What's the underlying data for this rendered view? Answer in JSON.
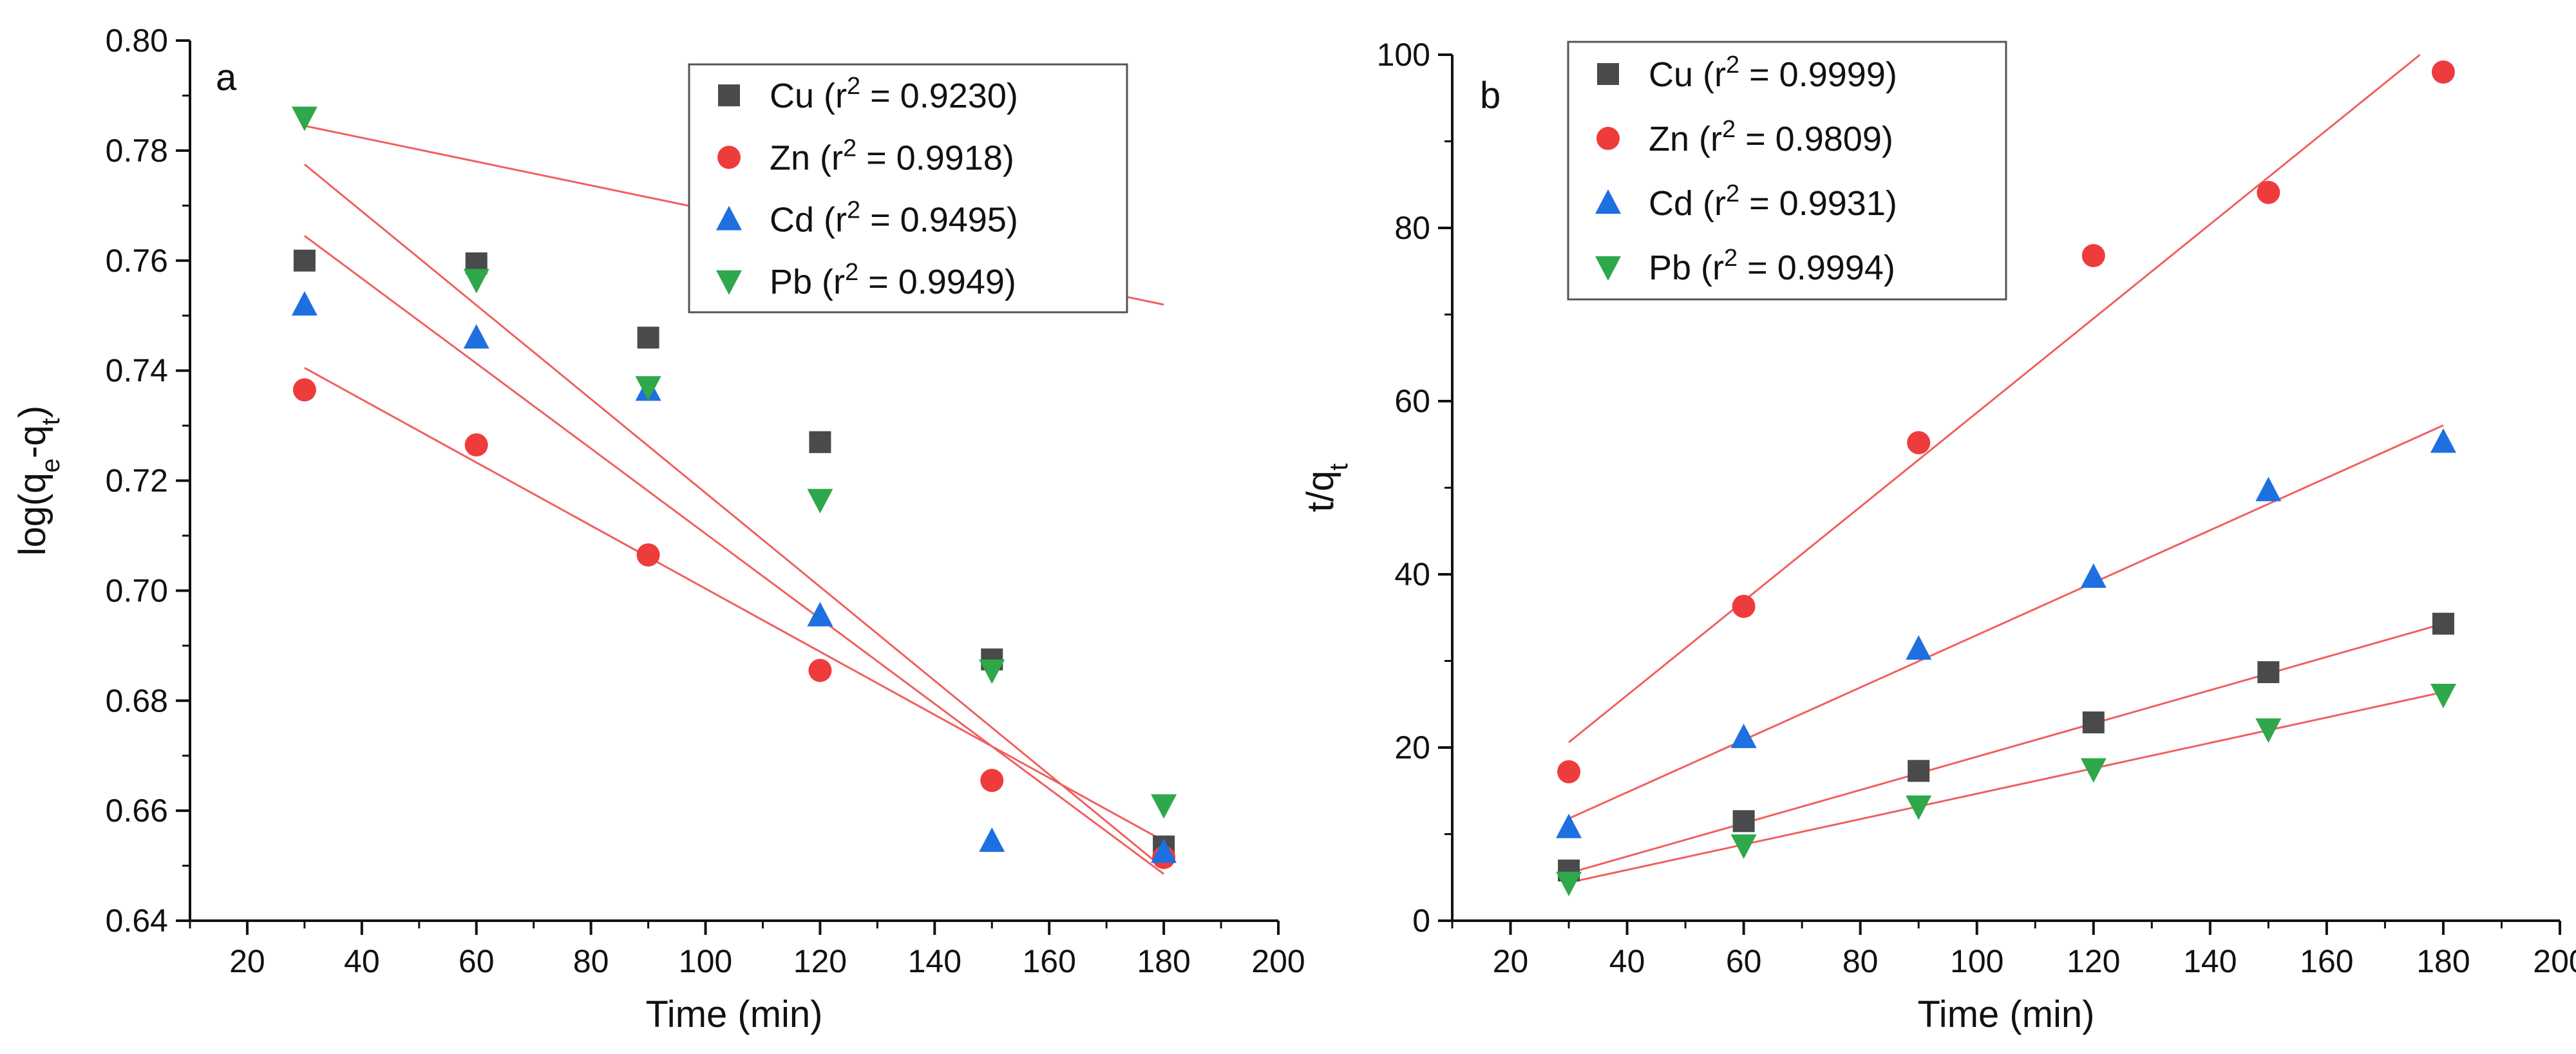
{
  "chart_data": [
    {
      "panel": "a",
      "type": "scatter",
      "xlabel": "Time (min)",
      "ylabel": "log(q",
      "ylabel_sub1": "e",
      "ylabel_mid": "-q",
      "ylabel_sub2": "t",
      "ylabel_end": ")",
      "xlim": [
        10,
        200
      ],
      "ylim": [
        0.64,
        0.8
      ],
      "xticks": [
        "20",
        "40",
        "60",
        "80",
        "100",
        "120",
        "140",
        "160",
        "180",
        "200"
      ],
      "yticks": [
        "0.64",
        "0.66",
        "0.68",
        "0.70",
        "0.72",
        "0.74",
        "0.76",
        "0.78",
        "0.80"
      ],
      "legend_position": "top-right",
      "x": [
        30,
        60,
        90,
        120,
        150,
        180
      ],
      "series": [
        {
          "name": "Cu",
          "r2": "0.9230",
          "marker": "square",
          "color": "#4a4a4a",
          "values": [
            0.76,
            0.7595,
            0.746,
            0.727,
            0.6875,
            0.6535
          ],
          "fit": [
            0.7845,
            0.752
          ]
        },
        {
          "name": "Zn",
          "r2": "0.9918",
          "marker": "circle",
          "color": "#ee3c3c",
          "values": [
            0.7365,
            0.7265,
            0.7065,
            0.6855,
            0.6655,
            0.6515
          ],
          "fit": [
            0.7405,
            0.6545
          ]
        },
        {
          "name": "Cd",
          "r2": "0.9495",
          "marker": "triangle-up",
          "color": "#1e6fe0",
          "values": [
            0.752,
            0.746,
            0.7365,
            0.6955,
            0.6545,
            0.6525
          ],
          "fit": [
            0.7645,
            0.6485
          ]
        },
        {
          "name": "Pb",
          "r2": "0.9949",
          "marker": "triangle-down",
          "color": "#2ea84a",
          "values": [
            0.786,
            0.7565,
            0.737,
            0.7165,
            0.6855,
            0.661
          ],
          "fit": [
            0.7775,
            0.6495
          ]
        }
      ],
      "legend_prefix": "(r",
      "legend_sup": "2",
      "legend_eq": " = "
    },
    {
      "panel": "b",
      "type": "scatter",
      "xlabel": "Time (min)",
      "ylabel": "t/q",
      "ylabel_sub1": "t",
      "xlim": [
        10,
        200
      ],
      "ylim": [
        0,
        100
      ],
      "xticks": [
        "20",
        "40",
        "60",
        "80",
        "100",
        "120",
        "140",
        "160",
        "180",
        "200"
      ],
      "yticks": [
        "0",
        "20",
        "40",
        "60",
        "80",
        "100"
      ],
      "legend_position": "top-left",
      "x": [
        30,
        60,
        90,
        120,
        150,
        180
      ],
      "series": [
        {
          "name": "Cu",
          "r2": "0.9999",
          "marker": "square",
          "color": "#4a4a4a",
          "values": [
            5.8,
            11.5,
            17.3,
            22.9,
            28.7,
            34.3
          ],
          "fit": [
            5.5,
            34.3
          ]
        },
        {
          "name": "Zn",
          "r2": "0.9809",
          "marker": "circle",
          "color": "#ee3c3c",
          "values": [
            17.2,
            36.3,
            55.2,
            76.8,
            84.1,
            98.0
          ],
          "fit": [
            20.6,
            100.0
          ],
          "fit_end_x": 176
        },
        {
          "name": "Cd",
          "r2": "0.9931",
          "marker": "triangle-up",
          "color": "#1e6fe0",
          "values": [
            10.8,
            21.2,
            31.4,
            39.7,
            49.7,
            55.3
          ],
          "fit": [
            11.8,
            57.2
          ]
        },
        {
          "name": "Pb",
          "r2": "0.9994",
          "marker": "triangle-down",
          "color": "#2ea84a",
          "values": [
            4.4,
            8.7,
            13.2,
            17.5,
            22.1,
            26.1
          ],
          "fit": [
            4.4,
            26.4
          ]
        }
      ],
      "legend_prefix": "(r",
      "legend_sup": "2",
      "legend_eq": " = "
    }
  ],
  "colors": {
    "fit_line": "#f06060",
    "axis": "#111111"
  }
}
